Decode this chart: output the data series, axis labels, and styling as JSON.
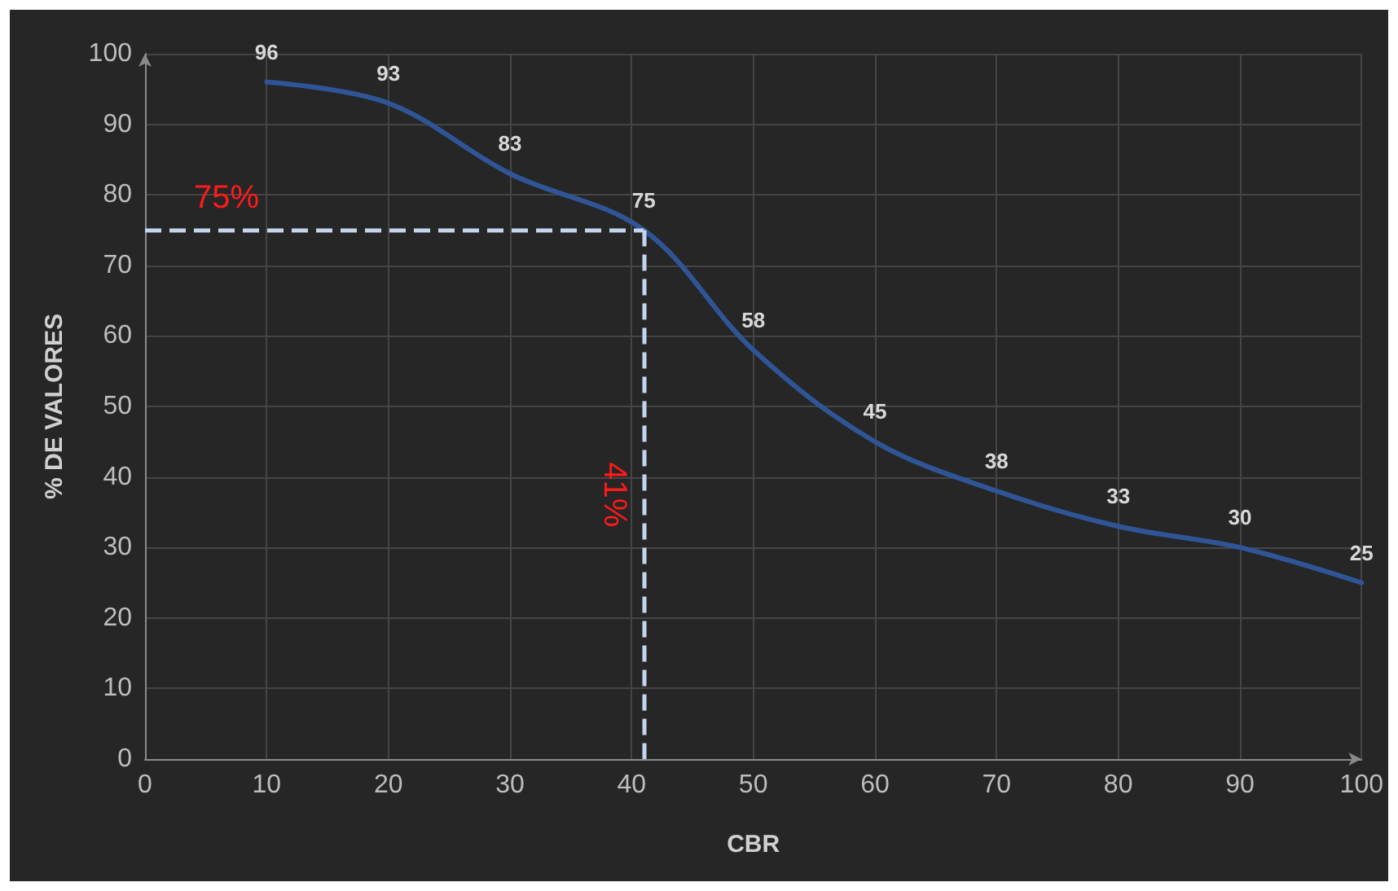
{
  "chart_data": {
    "type": "line",
    "xlabel": "CBR",
    "ylabel": "% DE VALORES",
    "x": [
      10,
      20,
      30,
      41,
      50,
      60,
      70,
      80,
      90,
      100
    ],
    "series": [
      {
        "color": "#2f5597",
        "values": [
          96,
          93,
          83,
          75,
          58,
          45,
          38,
          33,
          30,
          25
        ]
      }
    ],
    "data_labels": true,
    "marker": "none",
    "line_style": "solid",
    "grid": true,
    "xlim": [
      0,
      100
    ],
    "xticks": [
      0,
      10,
      20,
      30,
      40,
      50,
      60,
      70,
      80,
      90,
      100
    ],
    "ylim": [
      0,
      100
    ],
    "yticks": [
      0,
      10,
      20,
      30,
      40,
      50,
      60,
      70,
      80,
      90,
      100
    ],
    "ref_lines": [
      {
        "axis": "y",
        "value": 75,
        "label": "75%",
        "color": "#c5d5ee",
        "line_style": "dashed"
      },
      {
        "axis": "x",
        "value": 41,
        "label": "41%",
        "color": "#c5d5ee",
        "line_style": "dashed"
      }
    ]
  }
}
